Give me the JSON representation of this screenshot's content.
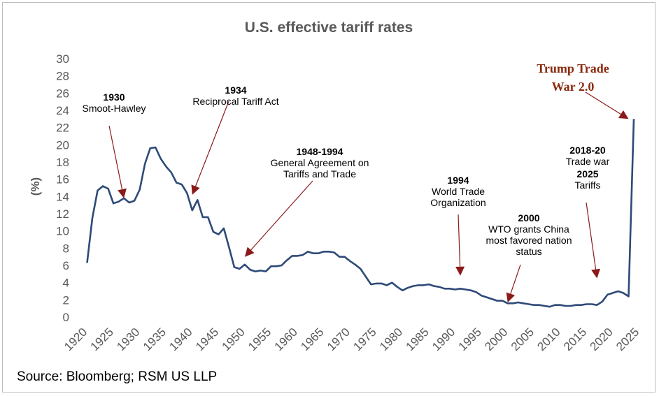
{
  "colors": {
    "series": "#2e4a78",
    "arrow": "#8b1a1a",
    "trump_text": "#8b2a10",
    "axis_text": "#595959"
  },
  "chart_data": {
    "type": "line",
    "title": "U.S. effective tariff rates",
    "xlabel": "",
    "ylabel": "(%)",
    "xlim": [
      1920,
      2025
    ],
    "ylim": [
      0,
      30
    ],
    "y_ticks": [
      0,
      2,
      4,
      6,
      8,
      10,
      12,
      14,
      16,
      18,
      20,
      22,
      24,
      26,
      28,
      30
    ],
    "x_ticks": [
      1920,
      1925,
      1930,
      1935,
      1940,
      1945,
      1950,
      1955,
      1960,
      1965,
      1970,
      1975,
      1980,
      1985,
      1990,
      1995,
      2000,
      2005,
      2010,
      2015,
      2020,
      2025
    ],
    "series": [
      {
        "name": "U.S. effective tariff rate",
        "x": [
          1921,
          1922,
          1923,
          1924,
          1925,
          1926,
          1927,
          1928,
          1929,
          1930,
          1931,
          1932,
          1933,
          1934,
          1935,
          1936,
          1937,
          1938,
          1939,
          1940,
          1941,
          1942,
          1943,
          1944,
          1945,
          1946,
          1947,
          1948,
          1949,
          1950,
          1951,
          1952,
          1953,
          1954,
          1955,
          1956,
          1957,
          1958,
          1959,
          1960,
          1961,
          1962,
          1963,
          1964,
          1965,
          1966,
          1967,
          1968,
          1969,
          1970,
          1971,
          1972,
          1973,
          1974,
          1975,
          1976,
          1977,
          1978,
          1979,
          1980,
          1981,
          1982,
          1983,
          1984,
          1985,
          1986,
          1987,
          1988,
          1989,
          1990,
          1991,
          1992,
          1993,
          1994,
          1995,
          1996,
          1997,
          1998,
          1999,
          2000,
          2001,
          2002,
          2003,
          2004,
          2005,
          2006,
          2007,
          2008,
          2009,
          2010,
          2011,
          2012,
          2013,
          2014,
          2015,
          2016,
          2017,
          2018,
          2019,
          2020,
          2021,
          2022,
          2023,
          2024,
          2025
        ],
        "values": [
          6.3,
          11.5,
          14.7,
          15.2,
          14.9,
          13.2,
          13.4,
          13.8,
          13.3,
          13.5,
          14.8,
          17.8,
          19.6,
          19.7,
          18.4,
          17.5,
          16.8,
          15.6,
          15.4,
          14.4,
          12.4,
          13.6,
          11.6,
          11.6,
          9.9,
          9.6,
          10.3,
          8.1,
          5.8,
          5.6,
          6.1,
          5.5,
          5.3,
          5.4,
          5.3,
          5.9,
          5.9,
          6.0,
          6.6,
          7.1,
          7.1,
          7.2,
          7.6,
          7.4,
          7.4,
          7.6,
          7.6,
          7.5,
          7.0,
          7.0,
          6.5,
          6.1,
          5.6,
          4.7,
          3.8,
          3.9,
          3.9,
          3.7,
          4.0,
          3.5,
          3.1,
          3.4,
          3.6,
          3.7,
          3.7,
          3.8,
          3.6,
          3.5,
          3.3,
          3.3,
          3.2,
          3.3,
          3.2,
          3.1,
          2.9,
          2.5,
          2.3,
          2.1,
          1.9,
          1.9,
          1.6,
          1.6,
          1.7,
          1.6,
          1.5,
          1.4,
          1.4,
          1.3,
          1.2,
          1.4,
          1.4,
          1.3,
          1.3,
          1.4,
          1.4,
          1.5,
          1.5,
          1.4,
          1.8,
          2.6,
          2.8,
          3.0,
          2.8,
          2.4,
          23.0
        ]
      }
    ],
    "annotations": [
      {
        "bold": "1930",
        "lines": [
          "Smoot-Hawley"
        ],
        "target_year": 1928,
        "target_value": 13.8
      },
      {
        "bold": "1934",
        "lines": [
          "Reciprocal Tariff Act"
        ],
        "target_year": 1941,
        "target_value": 14.2
      },
      {
        "bold": "1948-1994",
        "lines": [
          "General Agreement on",
          "Tariffs and Trade"
        ],
        "target_year": 1951,
        "target_value": 7.0
      },
      {
        "bold": "1994",
        "lines": [
          "World Trade",
          "Organization"
        ],
        "target_year": 1992,
        "target_value": 4.8
      },
      {
        "bold": "2000",
        "lines": [
          "WTO grants China",
          "most favored nation",
          "status"
        ],
        "target_year": 2001,
        "target_value": 1.7
      },
      {
        "bold": "2018-20",
        "lines": [
          "Trade war"
        ],
        "target_year": 2018,
        "target_value": 4.5
      },
      {
        "bold": "2025",
        "lines": [
          "Tariffs"
        ],
        "target_year": null,
        "target_value": null
      },
      {
        "bold": "Trump Trade",
        "lines": [
          "War 2.0"
        ],
        "target_year": 2024,
        "target_value": 23.0
      }
    ]
  },
  "source": "Source: Bloomberg; RSM US LLP"
}
